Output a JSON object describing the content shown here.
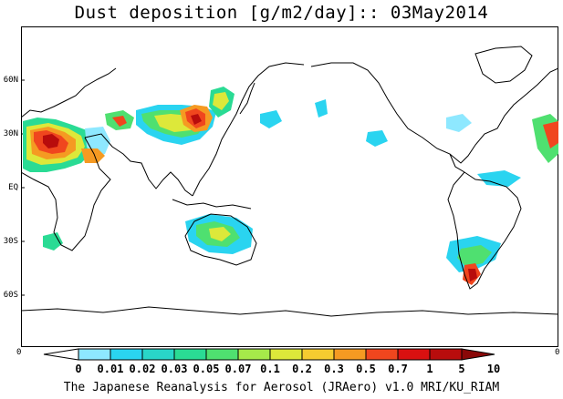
{
  "title": "Dust deposition [g/m2/day]:: 03May2014",
  "latitude_labels": [
    "60N",
    "30N",
    "EQ",
    "30S",
    "60S"
  ],
  "colorbar": {
    "ticks": [
      "0",
      "0.01",
      "0.02",
      "0.03",
      "0.05",
      "0.07",
      "0.1",
      "0.2",
      "0.3",
      "0.5",
      "0.7",
      "1",
      "5",
      "10"
    ],
    "end_left": "0",
    "end_right": "0",
    "colors": [
      "#ffffff",
      "#8ee8ff",
      "#2ad4f0",
      "#29d6c8",
      "#2adb94",
      "#4fe070",
      "#a6ea4a",
      "#dde83a",
      "#f6cc30",
      "#f59a22",
      "#f0461e",
      "#d91010",
      "#b80c0c",
      "#8a0808"
    ]
  },
  "credit": "The Japanese Reanalysis for Aerosol (JRAero) v1.0 MRI/KU_RIAM"
}
